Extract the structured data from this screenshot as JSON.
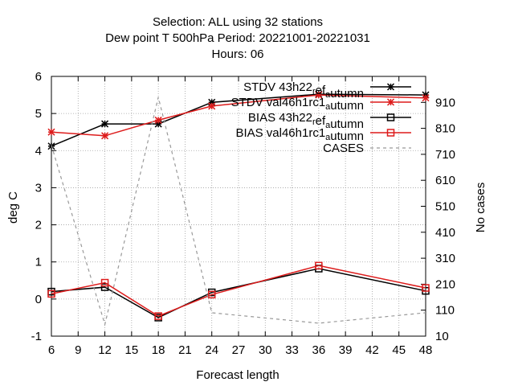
{
  "chart_data": {
    "type": "line",
    "title_lines": [
      "Selection: ALL using    32 stations",
      "Dew point T 500hPa   Period: 20221001-20221031",
      "Hours:  06"
    ],
    "xlabel": "Forecast length",
    "ylabel": "deg C",
    "y2label": "No cases",
    "xlim": [
      6,
      48
    ],
    "ylim": [
      -1,
      6
    ],
    "y2lim": [
      10,
      1010
    ],
    "x_ticks": [
      6,
      9,
      12,
      15,
      18,
      21,
      24,
      27,
      30,
      33,
      36,
      39,
      42,
      45,
      48
    ],
    "y_ticks": [
      -1,
      0,
      1,
      2,
      3,
      4,
      5,
      6
    ],
    "y2_ticks": [
      10,
      110,
      210,
      310,
      410,
      510,
      610,
      710,
      810,
      910
    ],
    "grid": true,
    "legend_position": "top-right",
    "series": [
      {
        "name": "STDV 43h22_ref_autumn",
        "legend": {
          "pre": "STDV 43h22",
          "sub1": "r",
          "mid": "ef",
          "sub2": "a",
          "post": "utumn"
        },
        "axis": "left",
        "marker": "star",
        "color": "#000000",
        "dash": "",
        "x": [
          6,
          12,
          18,
          24,
          36,
          48
        ],
        "y": [
          4.12,
          4.72,
          4.72,
          5.3,
          5.52,
          5.5
        ]
      },
      {
        "name": "STDV val46h1rc1_autumn",
        "legend": {
          "pre": "STDV val46h1rc1",
          "sub1": "a",
          "mid": "utumn",
          "sub2": "",
          "post": ""
        },
        "axis": "left",
        "marker": "star",
        "color": "#dd1c1c",
        "dash": "",
        "x": [
          6,
          12,
          18,
          24,
          36,
          48
        ],
        "y": [
          4.5,
          4.4,
          4.82,
          5.2,
          5.5,
          5.42
        ]
      },
      {
        "name": "BIAS 43h22_ref_autumn",
        "legend": {
          "pre": "BIAS 43h22",
          "sub1": "r",
          "mid": "ef",
          "sub2": "a",
          "post": "utumn"
        },
        "axis": "left",
        "marker": "square",
        "color": "#000000",
        "dash": "",
        "x": [
          6,
          12,
          18,
          24,
          36,
          48
        ],
        "y": [
          0.2,
          0.32,
          -0.5,
          0.18,
          0.82,
          0.22
        ]
      },
      {
        "name": "BIAS val46h1rc1_autumn",
        "legend": {
          "pre": "BIAS val46h1rc1",
          "sub1": "a",
          "mid": "utumn",
          "sub2": "",
          "post": ""
        },
        "axis": "left",
        "marker": "square",
        "color": "#dd1c1c",
        "dash": "",
        "x": [
          6,
          12,
          18,
          24,
          36,
          48
        ],
        "y": [
          0.14,
          0.44,
          -0.46,
          0.12,
          0.9,
          0.3
        ]
      },
      {
        "name": "CASES",
        "legend": {
          "pre": "CASES",
          "sub1": "",
          "mid": "",
          "sub2": "",
          "post": ""
        },
        "axis": "right",
        "marker": "none",
        "color": "#999999",
        "dash": "4,4",
        "x": [
          6,
          12,
          18,
          24,
          36,
          48
        ],
        "y": [
          745,
          55,
          930,
          100,
          60,
          100
        ]
      }
    ]
  }
}
